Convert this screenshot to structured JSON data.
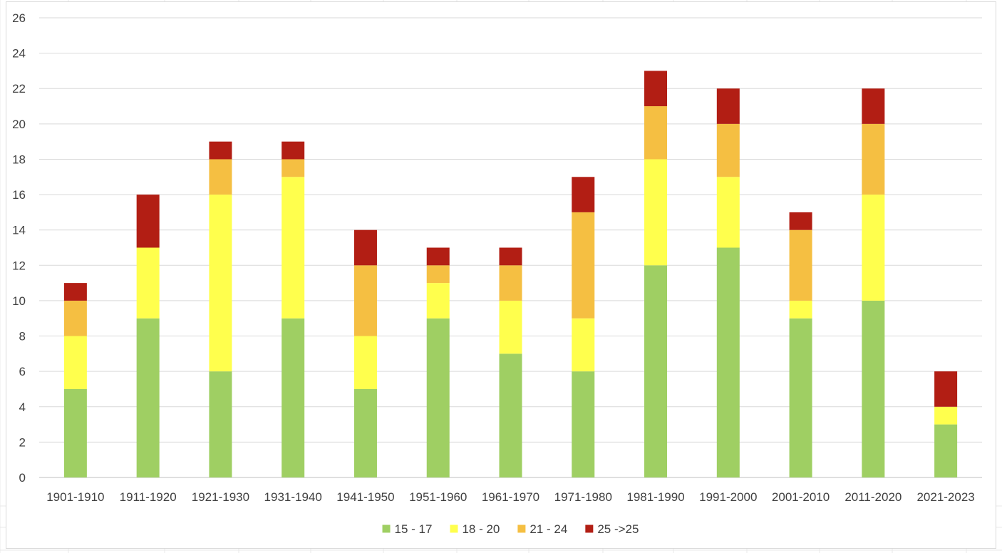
{
  "chart_data": {
    "type": "bar",
    "stacked": true,
    "title": "",
    "xlabel": "",
    "ylabel": "",
    "ylim": [
      0,
      26
    ],
    "ytick_step": 2,
    "grid": true,
    "legend_position": "bottom",
    "categories": [
      "1901-1910",
      "1911-1920",
      "1921-1930",
      "1931-1940",
      "1941-1950",
      "1951-1960",
      "1961-1970",
      "1971-1980",
      "1981-1990",
      "1991-2000",
      "2001-2010",
      "2011-2020",
      "2021-2023"
    ],
    "series": [
      {
        "name": "15 - 17",
        "color": "#9fcf63",
        "values": [
          5,
          9,
          6,
          9,
          5,
          9,
          7,
          6,
          12,
          13,
          9,
          10,
          3
        ]
      },
      {
        "name": "18 - 20",
        "color": "#ffff4d",
        "values": [
          3,
          4,
          10,
          8,
          3,
          2,
          3,
          3,
          6,
          4,
          1,
          6,
          1
        ]
      },
      {
        "name": "21 - 24",
        "color": "#f5bf42",
        "values": [
          2,
          0,
          2,
          1,
          4,
          1,
          2,
          6,
          3,
          3,
          4,
          4,
          0
        ]
      },
      {
        "name": "25 ->25",
        "color": "#b21e14",
        "values": [
          1,
          3,
          1,
          1,
          2,
          1,
          1,
          2,
          2,
          2,
          1,
          2,
          2
        ]
      }
    ]
  }
}
